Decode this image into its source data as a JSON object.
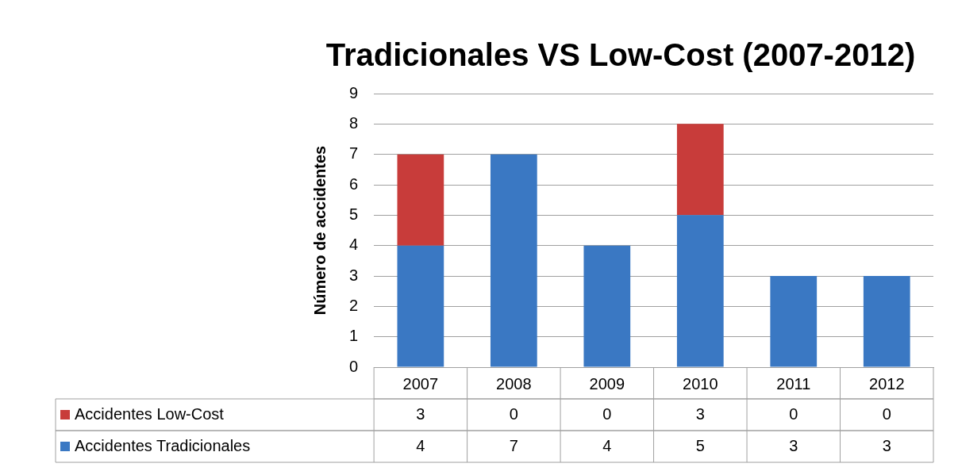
{
  "chart_data": {
    "type": "bar",
    "title": "Tradicionales VS Low-Cost (2007-2012)",
    "ylabel": "Número de accidentes",
    "categories": [
      "2007",
      "2008",
      "2009",
      "2010",
      "2011",
      "2012"
    ],
    "series": [
      {
        "name": "Accidentes Tradicionales",
        "color": "#3a78c3",
        "values": [
          4,
          7,
          4,
          5,
          3,
          3
        ]
      },
      {
        "name": "Accidentes Low-Cost",
        "color": "#c83c3a",
        "values": [
          3,
          0,
          0,
          3,
          0,
          0
        ]
      }
    ],
    "stacked": true,
    "ylim": [
      0,
      9
    ],
    "yticks": [
      0,
      1,
      2,
      3,
      4,
      5,
      6,
      7,
      8,
      9
    ],
    "grid": "y",
    "legend": "bottom",
    "data_labels": true
  }
}
